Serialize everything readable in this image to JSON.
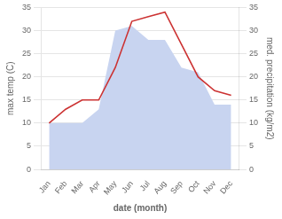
{
  "chart_data": {
    "type": "line",
    "xlabel": "date (month)",
    "ylabel": "max temp (C)",
    "y2label": "med. precipitation (kg/m2)",
    "categories": [
      "Jan",
      "Feb",
      "Mar",
      "Apr",
      "May",
      "Jun",
      "Jul",
      "Aug",
      "Sep",
      "Oct",
      "Nov",
      "Dec"
    ],
    "series": [
      {
        "type": "area",
        "color": "#c8d4f0",
        "axis": "y2",
        "values": [
          10,
          10,
          10,
          13,
          30,
          31,
          28,
          28,
          22,
          21,
          14,
          14
        ]
      },
      {
        "type": "line",
        "color": "#cc3333",
        "values": [
          10,
          13,
          15,
          15,
          22,
          32,
          33,
          34,
          27,
          20,
          17,
          16
        ]
      }
    ],
    "ylim": [
      0,
      35
    ],
    "yticks": [
      0,
      5,
      10,
      15,
      20,
      25,
      30,
      35
    ],
    "y2lim": [
      0,
      35
    ],
    "y2ticks": [
      0,
      5,
      10,
      15,
      20,
      25,
      30,
      35
    ],
    "grid": true
  }
}
